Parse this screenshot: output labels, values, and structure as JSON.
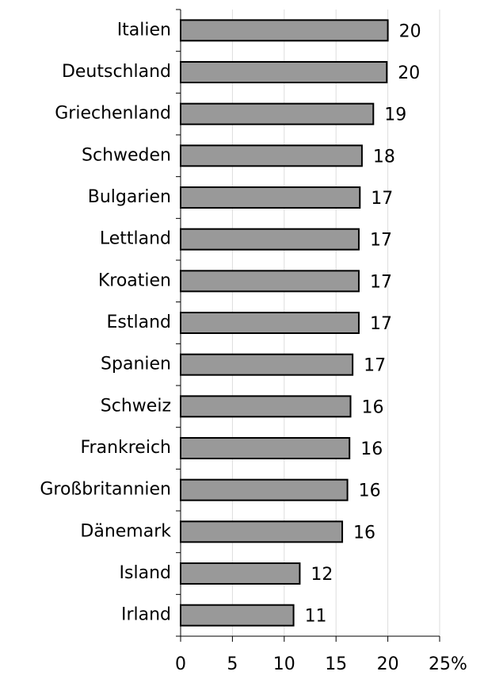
{
  "chart_data": {
    "type": "hbar",
    "categories": [
      "Italien",
      "Deutschland",
      "Griechenland",
      "Schweden",
      "Bulgarien",
      "Lettland",
      "Kroatien",
      "Estland",
      "Spanien",
      "Schweiz",
      "Frankreich",
      "Großbritannien",
      "Dänemark",
      "Island",
      "Irland"
    ],
    "values": [
      20.0,
      19.9,
      18.6,
      17.5,
      17.3,
      17.2,
      17.2,
      17.2,
      16.6,
      16.4,
      16.3,
      16.1,
      15.6,
      11.5,
      10.9
    ],
    "value_labels": [
      "20",
      "20",
      "19",
      "18",
      "17",
      "17",
      "17",
      "17",
      "17",
      "16",
      "16",
      "16",
      "16",
      "12",
      "11"
    ],
    "color": "#999999",
    "xlim": [
      0,
      25
    ],
    "xticks": [
      0,
      5,
      10,
      15,
      20,
      {
        "value": 25,
        "label": "25%"
      }
    ],
    "grid": true
  }
}
